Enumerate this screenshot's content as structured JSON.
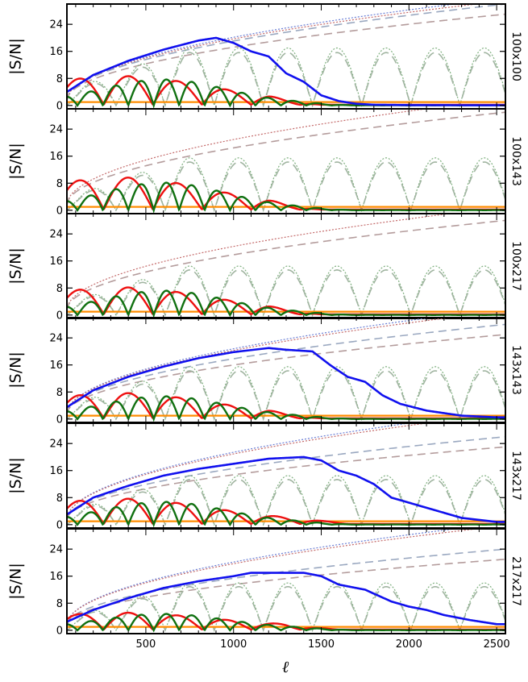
{
  "chart_data": {
    "type": "line",
    "xlabel": "ℓ",
    "xlim": [
      50,
      2550
    ],
    "x_ticks": [
      500,
      1000,
      1500,
      2000,
      2500
    ],
    "ylim": [
      -1,
      30
    ],
    "y_ticks": [
      0,
      8,
      16,
      24
    ],
    "ylabel": "|S/N|",
    "series_colors": {
      "blue_solid": "#1010ee",
      "red_solid": "#ee1010",
      "green_solid": "#107010",
      "orange_solid": "#ff8c00",
      "dotted_blue": "#6a7fd6",
      "dotted_red": "#c46a6a",
      "dotted_green": "#7fb07f",
      "dashed_gray_blue": "#9aa8c0",
      "dashed_gray_red": "#b49c9c",
      "dashed_gray_green": "#a0b4a0"
    },
    "panels": [
      {
        "label": "100x100",
        "has_blue": true,
        "blue": [
          [
            50,
            4
          ],
          [
            200,
            9
          ],
          [
            400,
            13.2
          ],
          [
            600,
            16.5
          ],
          [
            800,
            19.2
          ],
          [
            900,
            20
          ],
          [
            1000,
            18.5
          ],
          [
            1100,
            16
          ],
          [
            1200,
            14.5
          ],
          [
            1250,
            12
          ],
          [
            1300,
            9.5
          ],
          [
            1400,
            7
          ],
          [
            1450,
            5
          ],
          [
            1500,
            3
          ],
          [
            1600,
            1.3
          ],
          [
            1700,
            0.5
          ],
          [
            1800,
            0.2
          ],
          [
            2000,
            0.1
          ],
          [
            2500,
            0.05
          ]
        ],
        "red_amp": 7.5,
        "red_end": 1200,
        "green_amp": 7.5,
        "green_end": 1400,
        "gray_amp": 17,
        "gray_start": 800,
        "dotted_top_end": 31,
        "dashed_top_end": 29,
        "orange_level": 1
      },
      {
        "label": "100x143",
        "has_blue": false,
        "red_amp": 8.5,
        "red_end": 1200,
        "green_amp": 8,
        "green_end": 1400,
        "gray_amp": 15.5,
        "gray_start": 800,
        "dotted_top_end": 33,
        "dashed_top_end": 31,
        "orange_level": 1
      },
      {
        "label": "100x217",
        "has_blue": false,
        "red_amp": 7,
        "red_end": 1200,
        "green_amp": 7,
        "green_end": 1400,
        "gray_amp": 14.5,
        "gray_start": 800,
        "dotted_top_end": 32,
        "dashed_top_end": 30,
        "orange_level": 1
      },
      {
        "label": "143x143",
        "has_blue": true,
        "blue": [
          [
            50,
            3.5
          ],
          [
            200,
            8.5
          ],
          [
            400,
            12.5
          ],
          [
            600,
            15.5
          ],
          [
            800,
            18
          ],
          [
            1000,
            19.8
          ],
          [
            1200,
            21
          ],
          [
            1300,
            20.5
          ],
          [
            1450,
            20
          ],
          [
            1550,
            16
          ],
          [
            1650,
            12.5
          ],
          [
            1750,
            11
          ],
          [
            1850,
            7
          ],
          [
            1950,
            4.5
          ],
          [
            2100,
            2.5
          ],
          [
            2300,
            1
          ],
          [
            2500,
            0.5
          ]
        ],
        "red_amp": 6.5,
        "red_end": 1200,
        "green_amp": 6.5,
        "green_end": 1400,
        "gray_amp": 15.5,
        "gray_start": 800,
        "dotted_top_end": 32,
        "dashed_top_end": 27,
        "orange_level": 1
      },
      {
        "label": "143x217",
        "has_blue": true,
        "blue": [
          [
            50,
            3
          ],
          [
            200,
            8
          ],
          [
            400,
            11.5
          ],
          [
            600,
            14.5
          ],
          [
            800,
            16.5
          ],
          [
            1000,
            18
          ],
          [
            1200,
            19.5
          ],
          [
            1400,
            20
          ],
          [
            1500,
            19
          ],
          [
            1600,
            16
          ],
          [
            1700,
            14.5
          ],
          [
            1800,
            12
          ],
          [
            1900,
            8
          ],
          [
            2000,
            6.5
          ],
          [
            2100,
            5
          ],
          [
            2200,
            3.5
          ],
          [
            2300,
            2
          ],
          [
            2500,
            0.8
          ]
        ],
        "red_amp": 6.5,
        "red_end": 1400,
        "green_amp": 6.5,
        "green_end": 1400,
        "gray_amp": 14.5,
        "gray_start": 800,
        "dotted_top_end": 33,
        "dashed_top_end": 25,
        "orange_level": 1
      },
      {
        "label": "217x217",
        "has_blue": true,
        "blue": [
          [
            50,
            2.5
          ],
          [
            200,
            6
          ],
          [
            400,
            9.5
          ],
          [
            600,
            12.5
          ],
          [
            800,
            14.5
          ],
          [
            1000,
            16
          ],
          [
            1100,
            17
          ],
          [
            1250,
            17
          ],
          [
            1400,
            17
          ],
          [
            1500,
            16
          ],
          [
            1600,
            13.5
          ],
          [
            1750,
            12
          ],
          [
            1900,
            8.5
          ],
          [
            2000,
            7
          ],
          [
            2100,
            6
          ],
          [
            2200,
            4.5
          ],
          [
            2350,
            3
          ],
          [
            2500,
            1.8
          ]
        ],
        "red_amp": 4,
        "red_end": 1300,
        "green_amp": 4.5,
        "green_end": 1400,
        "gray_amp": 14,
        "gray_start": 800,
        "dotted_top_end": 31,
        "dashed_top_end": 23,
        "orange_level": 1
      }
    ]
  }
}
